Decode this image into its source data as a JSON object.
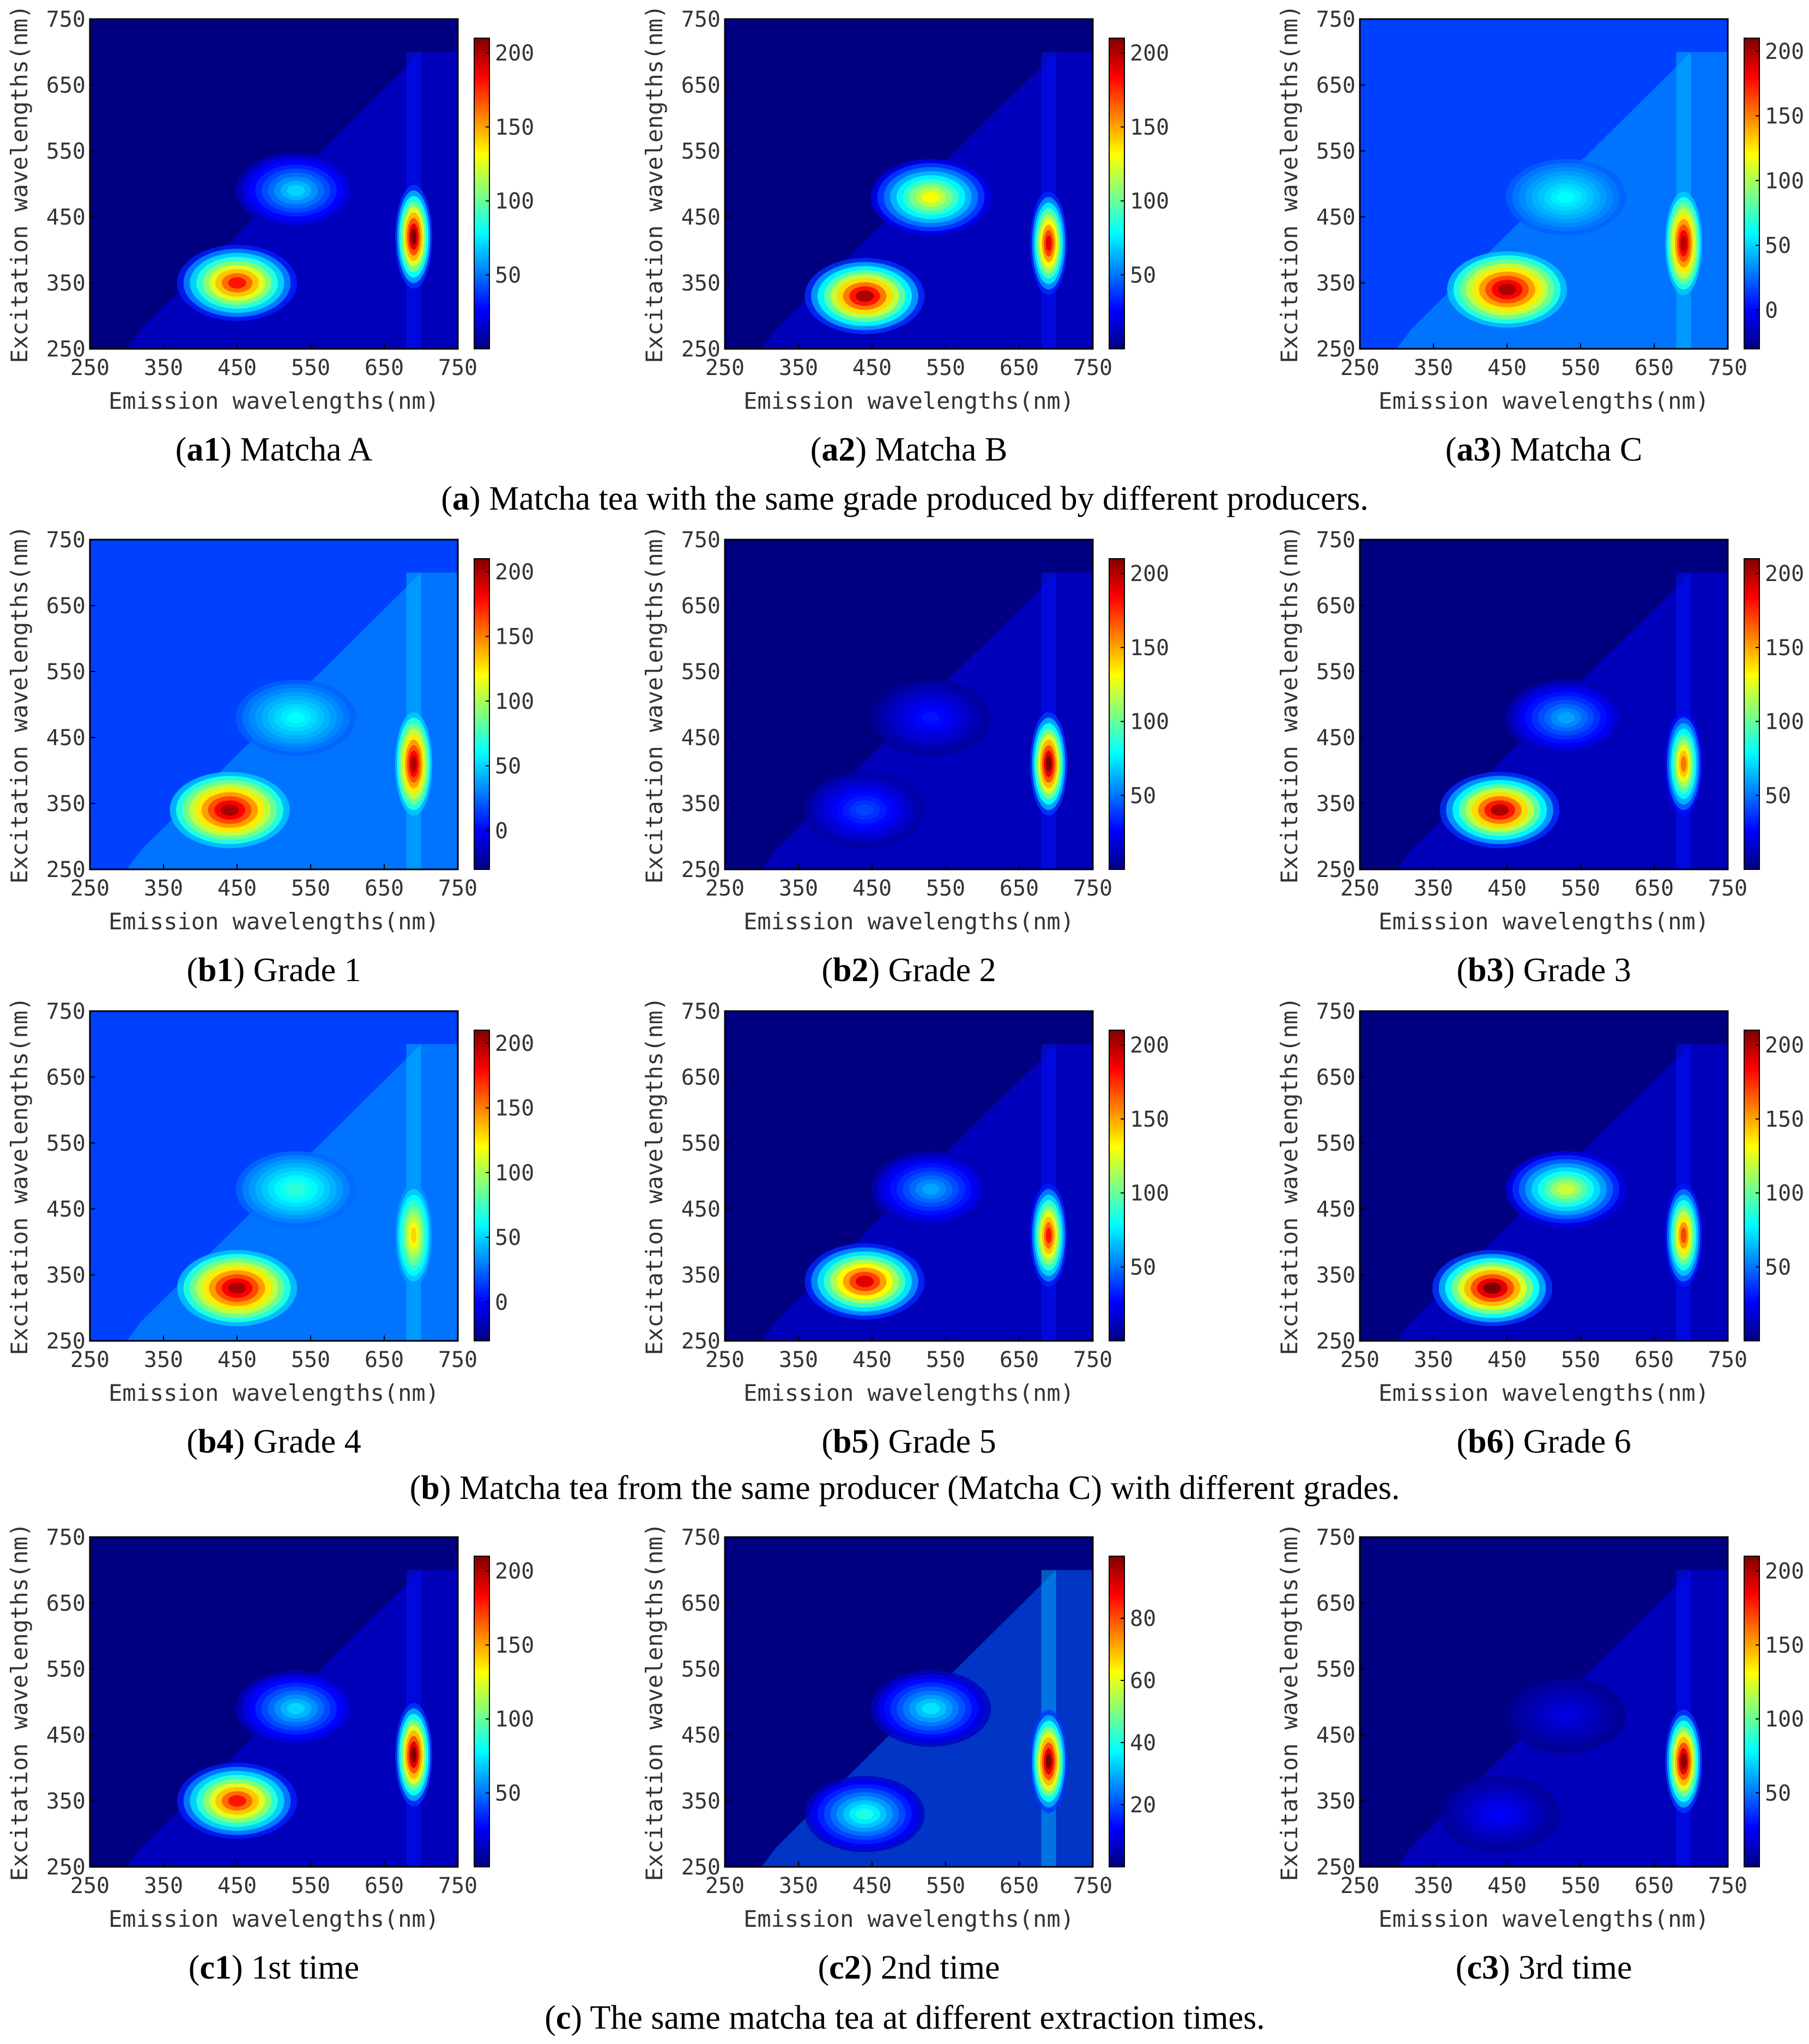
{
  "chart_data": [
    {
      "id": "a1",
      "type": "heatmap",
      "caption_id": "a1",
      "caption_text": "Matcha A",
      "xlabel": "Emission wavelengths(nm)",
      "ylabel": "Excitation wavelengths(nm)",
      "xlim": [
        250,
        750
      ],
      "ylim": [
        250,
        750
      ],
      "x_ticks": [
        "250",
        "350",
        "450",
        "550",
        "650",
        "750"
      ],
      "y_ticks": [
        "250",
        "350",
        "450",
        "550",
        "650",
        "750"
      ],
      "colorbar": {
        "min": 0,
        "max": 210,
        "ticks": [
          "50",
          "100",
          "150",
          "200"
        ]
      },
      "background_value": 0,
      "peaks": [
        {
          "em": 450,
          "ex": 350,
          "value": 180
        },
        {
          "em": 690,
          "ex": 420,
          "value": 210
        },
        {
          "em": 530,
          "ex": 490,
          "value": 70
        }
      ]
    },
    {
      "id": "a2",
      "type": "heatmap",
      "caption_id": "a2",
      "caption_text": "Matcha B",
      "xlabel": "Emission wavelengths(nm)",
      "ylabel": "Excitation wavelengths(nm)",
      "xlim": [
        250,
        750
      ],
      "ylim": [
        250,
        750
      ],
      "x_ticks": [
        "250",
        "350",
        "450",
        "550",
        "650",
        "750"
      ],
      "y_ticks": [
        "250",
        "350",
        "450",
        "550",
        "650",
        "750"
      ],
      "colorbar": {
        "min": 0,
        "max": 210,
        "ticks": [
          "50",
          "100",
          "150",
          "200"
        ]
      },
      "background_value": 0,
      "peaks": [
        {
          "em": 440,
          "ex": 330,
          "value": 200
        },
        {
          "em": 690,
          "ex": 410,
          "value": 190
        },
        {
          "em": 530,
          "ex": 480,
          "value": 130
        }
      ]
    },
    {
      "id": "a3",
      "type": "heatmap",
      "caption_id": "a3",
      "caption_text": "Matcha C",
      "xlabel": "Emission wavelengths(nm)",
      "ylabel": "Excitation wavelengths(nm)",
      "xlim": [
        250,
        750
      ],
      "ylim": [
        250,
        750
      ],
      "x_ticks": [
        "250",
        "350",
        "450",
        "550",
        "650",
        "750"
      ],
      "y_ticks": [
        "250",
        "350",
        "450",
        "550",
        "650",
        "750"
      ],
      "colorbar": {
        "min": -30,
        "max": 210,
        "ticks": [
          "0",
          "50",
          "100",
          "150",
          "200"
        ]
      },
      "background_value": 15,
      "peaks": [
        {
          "em": 450,
          "ex": 340,
          "value": 200
        },
        {
          "em": 690,
          "ex": 410,
          "value": 200
        },
        {
          "em": 530,
          "ex": 480,
          "value": 60
        }
      ]
    },
    {
      "id": "b1",
      "type": "heatmap",
      "caption_id": "b1",
      "caption_text": "Grade 1",
      "xlabel": "Emission wavelengths(nm)",
      "ylabel": "Excitation wavelengths(nm)",
      "xlim": [
        250,
        750
      ],
      "ylim": [
        250,
        750
      ],
      "x_ticks": [
        "250",
        "350",
        "450",
        "550",
        "650",
        "750"
      ],
      "y_ticks": [
        "250",
        "350",
        "450",
        "550",
        "650",
        "750"
      ],
      "colorbar": {
        "min": -30,
        "max": 210,
        "ticks": [
          "0",
          "50",
          "100",
          "150",
          "200"
        ]
      },
      "background_value": 15,
      "peaks": [
        {
          "em": 440,
          "ex": 340,
          "value": 200
        },
        {
          "em": 690,
          "ex": 410,
          "value": 200
        },
        {
          "em": 530,
          "ex": 480,
          "value": 60
        }
      ]
    },
    {
      "id": "b2",
      "type": "heatmap",
      "caption_id": "b2",
      "caption_text": "Grade 2",
      "xlabel": "Emission wavelengths(nm)",
      "ylabel": "Excitation wavelengths(nm)",
      "xlim": [
        250,
        750
      ],
      "ylim": [
        250,
        750
      ],
      "x_ticks": [
        "250",
        "350",
        "450",
        "550",
        "650",
        "750"
      ],
      "y_ticks": [
        "250",
        "350",
        "450",
        "550",
        "650",
        "750"
      ],
      "colorbar": {
        "min": 0,
        "max": 210,
        "ticks": [
          "50",
          "100",
          "150",
          "200"
        ]
      },
      "background_value": 0,
      "peaks": [
        {
          "em": 440,
          "ex": 340,
          "value": 40
        },
        {
          "em": 690,
          "ex": 410,
          "value": 210
        },
        {
          "em": 530,
          "ex": 480,
          "value": 30
        }
      ]
    },
    {
      "id": "b3",
      "type": "heatmap",
      "caption_id": "b3",
      "caption_text": "Grade 3",
      "xlabel": "Emission wavelengths(nm)",
      "ylabel": "Excitation wavelengths(nm)",
      "xlim": [
        250,
        750
      ],
      "ylim": [
        250,
        750
      ],
      "x_ticks": [
        "250",
        "350",
        "450",
        "550",
        "650",
        "750"
      ],
      "y_ticks": [
        "250",
        "350",
        "450",
        "550",
        "650",
        "750"
      ],
      "colorbar": {
        "min": 0,
        "max": 210,
        "ticks": [
          "50",
          "100",
          "150",
          "200"
        ]
      },
      "background_value": 0,
      "peaks": [
        {
          "em": 440,
          "ex": 340,
          "value": 200
        },
        {
          "em": 690,
          "ex": 410,
          "value": 160
        },
        {
          "em": 530,
          "ex": 480,
          "value": 60
        }
      ]
    },
    {
      "id": "b4",
      "type": "heatmap",
      "caption_id": "b4",
      "caption_text": "Grade 4",
      "xlabel": "Emission wavelengths(nm)",
      "ylabel": "Excitation wavelengths(nm)",
      "xlim": [
        250,
        750
      ],
      "ylim": [
        250,
        750
      ],
      "x_ticks": [
        "250",
        "350",
        "450",
        "550",
        "650",
        "750"
      ],
      "y_ticks": [
        "250",
        "350",
        "450",
        "550",
        "650",
        "750"
      ],
      "colorbar": {
        "min": -30,
        "max": 210,
        "ticks": [
          "0",
          "50",
          "100",
          "150",
          "200"
        ]
      },
      "background_value": 15,
      "peaks": [
        {
          "em": 450,
          "ex": 330,
          "value": 200
        },
        {
          "em": 690,
          "ex": 410,
          "value": 130
        },
        {
          "em": 530,
          "ex": 480,
          "value": 70
        }
      ]
    },
    {
      "id": "b5",
      "type": "heatmap",
      "caption_id": "b5",
      "caption_text": "Grade 5",
      "xlabel": "Emission wavelengths(nm)",
      "ylabel": "Excitation wavelengths(nm)",
      "xlim": [
        250,
        750
      ],
      "ylim": [
        250,
        750
      ],
      "x_ticks": [
        "250",
        "350",
        "450",
        "550",
        "650",
        "750"
      ],
      "y_ticks": [
        "250",
        "350",
        "450",
        "550",
        "650",
        "750"
      ],
      "colorbar": {
        "min": 0,
        "max": 210,
        "ticks": [
          "50",
          "100",
          "150",
          "200"
        ]
      },
      "background_value": 0,
      "peaks": [
        {
          "em": 440,
          "ex": 340,
          "value": 190
        },
        {
          "em": 690,
          "ex": 410,
          "value": 180
        },
        {
          "em": 530,
          "ex": 480,
          "value": 60
        }
      ]
    },
    {
      "id": "b6",
      "type": "heatmap",
      "caption_id": "b6",
      "caption_text": "Grade 6",
      "xlabel": "Emission wavelengths(nm)",
      "ylabel": "Excitation wavelengths(nm)",
      "xlim": [
        250,
        750
      ],
      "ylim": [
        250,
        750
      ],
      "x_ticks": [
        "250",
        "350",
        "450",
        "550",
        "650",
        "750"
      ],
      "y_ticks": [
        "250",
        "350",
        "450",
        "550",
        "650",
        "750"
      ],
      "colorbar": {
        "min": 0,
        "max": 210,
        "ticks": [
          "50",
          "100",
          "150",
          "200"
        ]
      },
      "background_value": 0,
      "peaks": [
        {
          "em": 430,
          "ex": 330,
          "value": 210
        },
        {
          "em": 690,
          "ex": 410,
          "value": 170
        },
        {
          "em": 530,
          "ex": 480,
          "value": 120
        }
      ]
    },
    {
      "id": "c1",
      "type": "heatmap",
      "caption_id": "c1",
      "caption_text": "1st time",
      "xlabel": "Emission wavelengths(nm)",
      "ylabel": "Excitation wavelengths(nm)",
      "xlim": [
        250,
        750
      ],
      "ylim": [
        250,
        750
      ],
      "x_ticks": [
        "250",
        "350",
        "450",
        "550",
        "650",
        "750"
      ],
      "y_ticks": [
        "250",
        "350",
        "450",
        "550",
        "650",
        "750"
      ],
      "colorbar": {
        "min": 0,
        "max": 210,
        "ticks": [
          "50",
          "100",
          "150",
          "200"
        ]
      },
      "background_value": 0,
      "peaks": [
        {
          "em": 450,
          "ex": 350,
          "value": 180
        },
        {
          "em": 690,
          "ex": 420,
          "value": 210
        },
        {
          "em": 530,
          "ex": 490,
          "value": 70
        }
      ]
    },
    {
      "id": "c2",
      "type": "heatmap",
      "caption_id": "c2",
      "caption_text": "2nd time",
      "xlabel": "Emission wavelengths(nm)",
      "ylabel": "Excitation wavelengths(nm)",
      "xlim": [
        250,
        750
      ],
      "ylim": [
        250,
        750
      ],
      "x_ticks": [
        "250",
        "350",
        "450",
        "550",
        "650",
        "750"
      ],
      "y_ticks": [
        "250",
        "350",
        "450",
        "550",
        "650",
        "750"
      ],
      "colorbar": {
        "min": 0,
        "max": 100,
        "ticks": [
          "20",
          "40",
          "60",
          "80"
        ]
      },
      "background_value": 0,
      "peaks": [
        {
          "em": 440,
          "ex": 330,
          "value": 40
        },
        {
          "em": 690,
          "ex": 410,
          "value": 100
        },
        {
          "em": 530,
          "ex": 490,
          "value": 35
        }
      ]
    },
    {
      "id": "c3",
      "type": "heatmap",
      "caption_id": "c3",
      "caption_text": "3rd time",
      "xlabel": "Emission wavelengths(nm)",
      "ylabel": "Excitation wavelengths(nm)",
      "xlim": [
        250,
        750
      ],
      "ylim": [
        250,
        750
      ],
      "x_ticks": [
        "250",
        "350",
        "450",
        "550",
        "650",
        "750"
      ],
      "y_ticks": [
        "250",
        "350",
        "450",
        "550",
        "650",
        "750"
      ],
      "colorbar": {
        "min": 0,
        "max": 210,
        "ticks": [
          "50",
          "100",
          "150",
          "200"
        ]
      },
      "background_value": 0,
      "peaks": [
        {
          "em": 440,
          "ex": 330,
          "value": 25
        },
        {
          "em": 690,
          "ex": 410,
          "value": 210
        },
        {
          "em": 530,
          "ex": 480,
          "value": 20
        }
      ]
    }
  ],
  "group_captions": [
    {
      "id": "a",
      "text": "Matcha tea with the same grade produced by different producers."
    },
    {
      "id": "b",
      "text": "Matcha tea from the same producer (Matcha C) with different grades."
    },
    {
      "id": "c",
      "text": "The same matcha tea at different extraction times."
    }
  ]
}
